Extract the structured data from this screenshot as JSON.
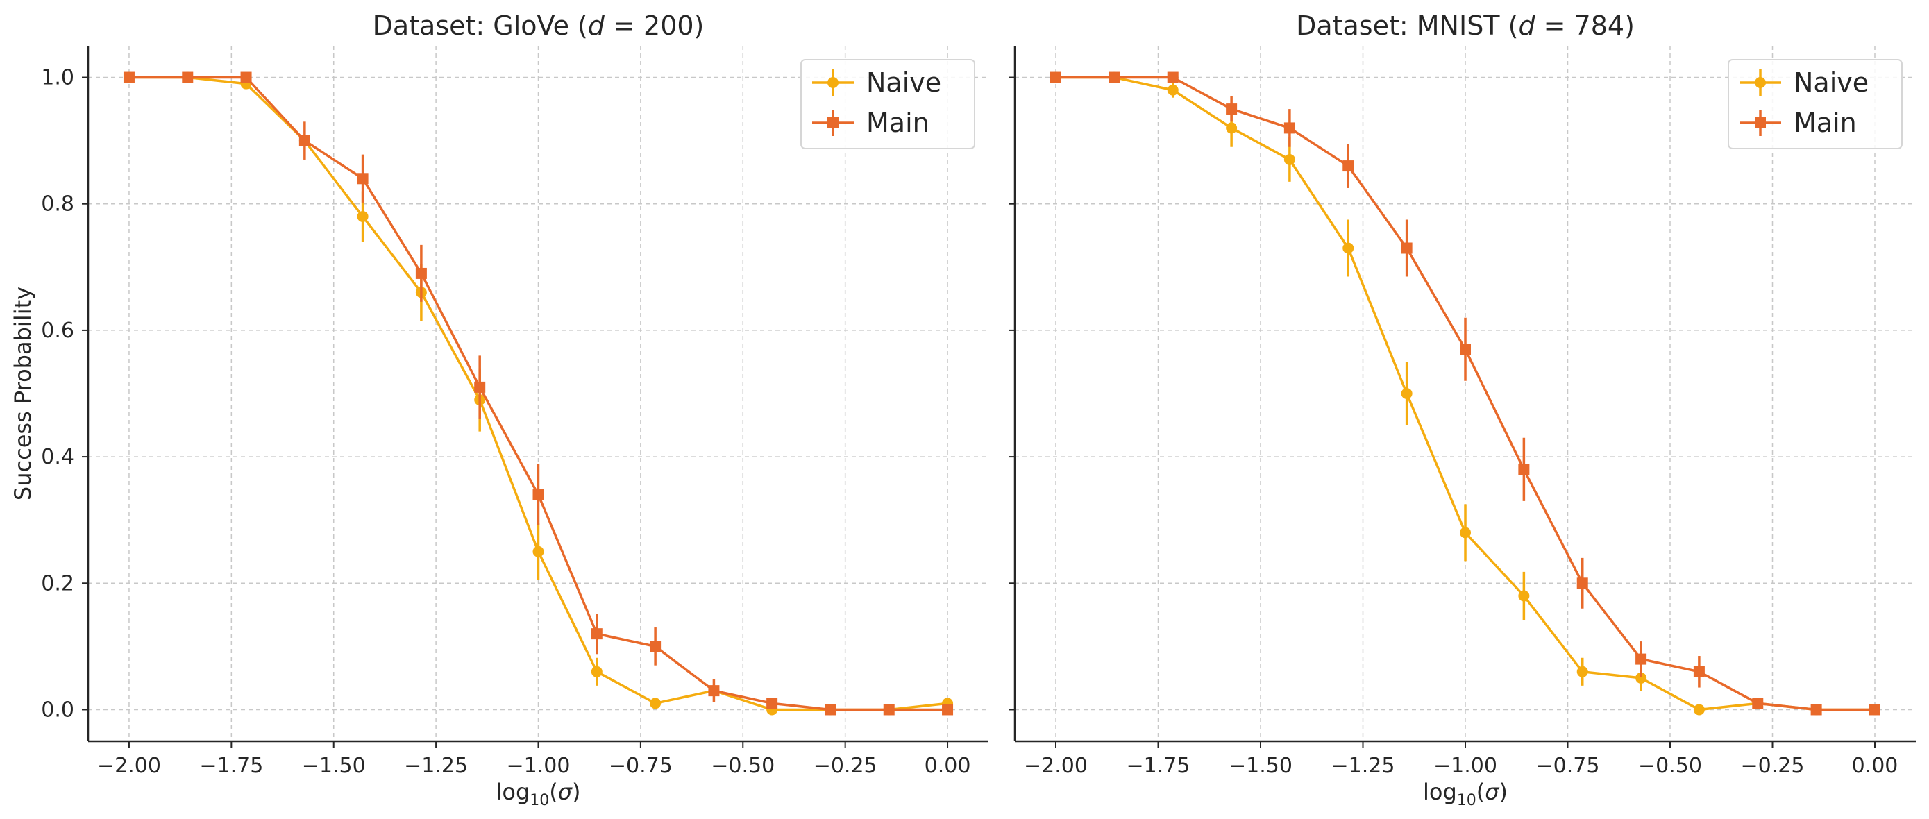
{
  "chart_data": [
    {
      "type": "line",
      "title": "Dataset: GloVe (d = 200)",
      "title_parts": {
        "prefix": "Dataset: GloVe (",
        "var": "d",
        "eq": " = 200)"
      },
      "xlabel": "log10(σ)",
      "ylabel": "Success Probability",
      "xlim": [
        -2.1,
        0.1
      ],
      "ylim": [
        -0.05,
        1.05
      ],
      "xticks": [
        -2.0,
        -1.75,
        -1.5,
        -1.25,
        -1.0,
        -0.75,
        -0.5,
        -0.25,
        0.0
      ],
      "xtick_labels": [
        "−2.00",
        "−1.75",
        "−1.50",
        "−1.25",
        "−1.00",
        "−0.75",
        "−0.50",
        "−0.25",
        "0.00"
      ],
      "yticks": [
        0.0,
        0.2,
        0.4,
        0.6,
        0.8,
        1.0
      ],
      "ytick_labels": [
        "0.0",
        "0.2",
        "0.4",
        "0.6",
        "0.8",
        "1.0"
      ],
      "grid": true,
      "legend_position": "top-right",
      "x": [
        -2.0,
        -1.857,
        -1.714,
        -1.571,
        -1.429,
        -1.286,
        -1.143,
        -1.0,
        -0.857,
        -0.714,
        -0.571,
        -0.429,
        -0.286,
        -0.143,
        0.0
      ],
      "series": [
        {
          "name": "Naive",
          "color": "#f5ac0f",
          "marker": "circle",
          "values": [
            1.0,
            1.0,
            0.99,
            0.9,
            0.78,
            0.66,
            0.49,
            0.25,
            0.06,
            0.01,
            0.03,
            0.0,
            0.0,
            0.0,
            0.01
          ],
          "errors": [
            0.0,
            0.0,
            0.0,
            0.0,
            0.04,
            0.045,
            0.05,
            0.045,
            0.022,
            0.0,
            0.0,
            0.0,
            0.0,
            0.0,
            0.0
          ]
        },
        {
          "name": "Main",
          "color": "#e8692a",
          "marker": "square",
          "values": [
            1.0,
            1.0,
            1.0,
            0.9,
            0.84,
            0.69,
            0.51,
            0.34,
            0.12,
            0.1,
            0.03,
            0.01,
            0.0,
            0.0,
            0.0
          ],
          "errors": [
            0.0,
            0.0,
            0.0,
            0.03,
            0.038,
            0.045,
            0.05,
            0.048,
            0.032,
            0.03,
            0.018,
            0.0,
            0.0,
            0.0,
            0.0
          ]
        }
      ]
    },
    {
      "type": "line",
      "title": "Dataset: MNIST (d = 784)",
      "title_parts": {
        "prefix": "Dataset: MNIST (",
        "var": "d",
        "eq": " = 784)"
      },
      "xlabel": "log10(σ)",
      "ylabel": "",
      "xlim": [
        -2.1,
        0.1
      ],
      "ylim": [
        -0.05,
        1.05
      ],
      "xticks": [
        -2.0,
        -1.75,
        -1.5,
        -1.25,
        -1.0,
        -0.75,
        -0.5,
        -0.25,
        0.0
      ],
      "xtick_labels": [
        "−2.00",
        "−1.75",
        "−1.50",
        "−1.25",
        "−1.00",
        "−0.75",
        "−0.50",
        "−0.25",
        "0.00"
      ],
      "yticks": [
        0.0,
        0.2,
        0.4,
        0.6,
        0.8,
        1.0
      ],
      "ytick_labels": [],
      "grid": true,
      "legend_position": "top-right",
      "x": [
        -2.0,
        -1.857,
        -1.714,
        -1.571,
        -1.429,
        -1.286,
        -1.143,
        -1.0,
        -0.857,
        -0.714,
        -0.571,
        -0.429,
        -0.286,
        -0.143,
        0.0
      ],
      "series": [
        {
          "name": "Naive",
          "color": "#f5ac0f",
          "marker": "circle",
          "values": [
            1.0,
            1.0,
            0.98,
            0.92,
            0.87,
            0.73,
            0.5,
            0.28,
            0.18,
            0.06,
            0.05,
            0.0,
            0.01,
            0.0,
            0.0
          ],
          "errors": [
            0.0,
            0.0,
            0.012,
            0.03,
            0.035,
            0.045,
            0.05,
            0.045,
            0.038,
            0.022,
            0.02,
            0.0,
            0.0,
            0.0,
            0.0
          ]
        },
        {
          "name": "Main",
          "color": "#e8692a",
          "marker": "square",
          "values": [
            1.0,
            1.0,
            1.0,
            0.95,
            0.92,
            0.86,
            0.73,
            0.57,
            0.38,
            0.2,
            0.08,
            0.06,
            0.01,
            0.0,
            0.0
          ],
          "errors": [
            0.0,
            0.0,
            0.0,
            0.02,
            0.03,
            0.035,
            0.045,
            0.05,
            0.05,
            0.04,
            0.028,
            0.025,
            0.0,
            0.0,
            0.0
          ]
        }
      ]
    }
  ]
}
